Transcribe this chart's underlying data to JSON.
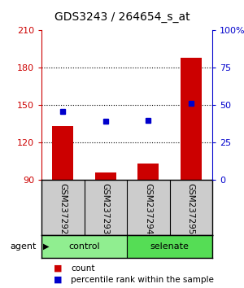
{
  "title": "GDS3243 / 264654_s_at",
  "samples": [
    "GSM237292",
    "GSM237293",
    "GSM237294",
    "GSM237295"
  ],
  "red_values": [
    133,
    96,
    103,
    188
  ],
  "blue_values": [
    46,
    39,
    40,
    51
  ],
  "red_base": 90,
  "left_ylim": [
    90,
    210
  ],
  "left_yticks": [
    90,
    120,
    150,
    180,
    210
  ],
  "right_ylim": [
    0,
    100
  ],
  "right_yticks": [
    0,
    25,
    50,
    75,
    100
  ],
  "right_yticklabels": [
    "0",
    "25",
    "50",
    "75",
    "100%"
  ],
  "groups": [
    {
      "label": "control",
      "indices": [
        0,
        1
      ],
      "color": "#90ee90"
    },
    {
      "label": "selenate",
      "indices": [
        2,
        3
      ],
      "color": "#55dd55"
    }
  ],
  "group_label": "agent",
  "bar_color": "#cc0000",
  "dot_color": "#0000cc",
  "bar_width": 0.5,
  "bg_color": "#ffffff",
  "plot_bg": "#ffffff",
  "sample_area_color": "#cccccc",
  "label_count": "count",
  "label_percentile": "percentile rank within the sample",
  "title_fontsize": 10,
  "tick_fontsize": 8,
  "sample_fontsize": 7.5,
  "group_fontsize": 8,
  "legend_fontsize": 7.5,
  "left_tick_color": "#cc0000",
  "right_tick_color": "#0000cc"
}
